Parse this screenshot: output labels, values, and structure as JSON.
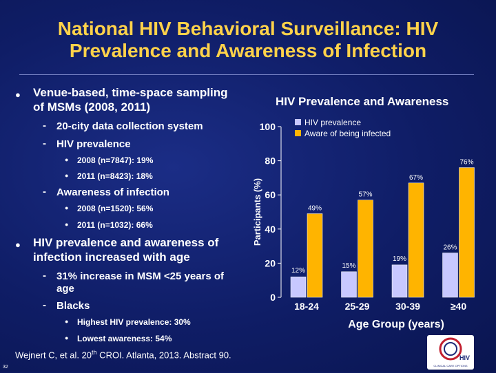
{
  "title_line1": "National HIV Behavioral Surveillance: HIV",
  "title_line2": "Prevalence and Awareness of Infection",
  "bullets": {
    "b1": "Venue-based, time-space sampling",
    "b1_cont": "of MSMs (2008, 2011)",
    "b1_1": "20-city data collection system",
    "b1_2": "HIV prevalence",
    "b1_2_1": "2008 (n=7847): 19%",
    "b1_2_2": "2011 (n=8423): 18%",
    "b1_3": "Awareness of infection",
    "b1_3_1": "2008 (n=1520): 56%",
    "b1_3_2": "2011 (n=1032): 66%",
    "b2": "HIV prevalence and awareness of",
    "b2_cont": "infection increased with age",
    "b2_1": "31% increase in MSM <25 years of",
    "b2_1_cont": "age",
    "b2_2": "Blacks",
    "b2_2_1": "Highest HIV prevalence: 30%",
    "b2_2_2": "Lowest awareness: 54%"
  },
  "citation": {
    "pre": "Wejnert C, et al. 20",
    "sup": "th",
    "post": " CROI. Atlanta, 2013. Abstract 90."
  },
  "slide_number": "32",
  "logo": {
    "word": "HIV",
    "caption": "CLINICAL CARE OPTIONS"
  },
  "colors": {
    "title": "#ffd24a",
    "prevalence": "#c8c8ff",
    "awareness": "#ffb400"
  },
  "chart_data": {
    "type": "bar",
    "title": "HIV Prevalence and Awareness",
    "xlabel": "Age Group (years)",
    "ylabel": "Participants (%)",
    "ylim": [
      0,
      100
    ],
    "yticks": [
      0,
      20,
      40,
      60,
      80,
      100
    ],
    "categories": [
      "18-24",
      "25-29",
      "30-39",
      "≥40"
    ],
    "series": [
      {
        "name": "HIV prevalence",
        "color": "#c8c8ff",
        "values": [
          12,
          15,
          19,
          26
        ],
        "labels": [
          "12%",
          "15%",
          "19%",
          "26%"
        ]
      },
      {
        "name": "Aware of being infected",
        "color": "#ffb400",
        "values": [
          49,
          57,
          67,
          76
        ],
        "labels": [
          "49%",
          "57%",
          "67%",
          "76%"
        ]
      }
    ],
    "legend": "top-right",
    "grid": false
  }
}
